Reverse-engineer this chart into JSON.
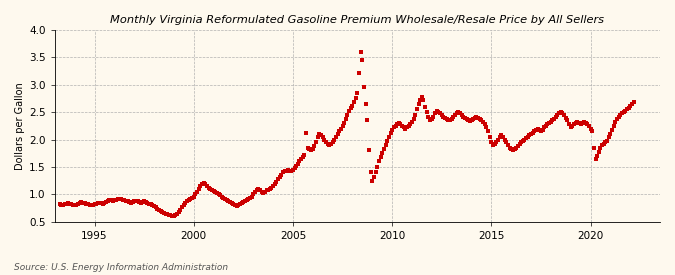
{
  "title": "Monthly Virginia Reformulated Gasoline Premium Wholesale/Resale Price by All Sellers",
  "ylabel": "Dollars per Gallon",
  "source": "Source: U.S. Energy Information Administration",
  "ylim": [
    0.5,
    4.0
  ],
  "yticks": [
    0.5,
    1.0,
    1.5,
    2.0,
    2.5,
    3.0,
    3.5,
    4.0
  ],
  "xlim_start": 1993.0,
  "xlim_end": 2023.5,
  "xticks": [
    1995,
    2000,
    2005,
    2010,
    2015,
    2020
  ],
  "background_color": "#fef9ee",
  "line_color": "#cc0000",
  "marker_color": "#cc0000",
  "data": [
    [
      1993.25,
      0.82
    ],
    [
      1993.33,
      0.8
    ],
    [
      1993.42,
      0.81
    ],
    [
      1993.5,
      0.82
    ],
    [
      1993.58,
      0.83
    ],
    [
      1993.67,
      0.84
    ],
    [
      1993.75,
      0.83
    ],
    [
      1993.83,
      0.82
    ],
    [
      1993.92,
      0.81
    ],
    [
      1994.0,
      0.8
    ],
    [
      1994.08,
      0.81
    ],
    [
      1994.17,
      0.82
    ],
    [
      1994.25,
      0.84
    ],
    [
      1994.33,
      0.86
    ],
    [
      1994.42,
      0.85
    ],
    [
      1994.5,
      0.84
    ],
    [
      1994.58,
      0.83
    ],
    [
      1994.67,
      0.82
    ],
    [
      1994.75,
      0.81
    ],
    [
      1994.83,
      0.8
    ],
    [
      1994.92,
      0.81
    ],
    [
      1995.0,
      0.82
    ],
    [
      1995.08,
      0.83
    ],
    [
      1995.17,
      0.84
    ],
    [
      1995.25,
      0.85
    ],
    [
      1995.33,
      0.84
    ],
    [
      1995.42,
      0.83
    ],
    [
      1995.5,
      0.84
    ],
    [
      1995.58,
      0.86
    ],
    [
      1995.67,
      0.88
    ],
    [
      1995.75,
      0.9
    ],
    [
      1995.83,
      0.89
    ],
    [
      1995.92,
      0.88
    ],
    [
      1996.0,
      0.89
    ],
    [
      1996.08,
      0.9
    ],
    [
      1996.17,
      0.91
    ],
    [
      1996.25,
      0.92
    ],
    [
      1996.33,
      0.91
    ],
    [
      1996.42,
      0.9
    ],
    [
      1996.5,
      0.89
    ],
    [
      1996.58,
      0.88
    ],
    [
      1996.67,
      0.87
    ],
    [
      1996.75,
      0.86
    ],
    [
      1996.83,
      0.85
    ],
    [
      1996.92,
      0.86
    ],
    [
      1997.0,
      0.87
    ],
    [
      1997.08,
      0.88
    ],
    [
      1997.17,
      0.87
    ],
    [
      1997.25,
      0.86
    ],
    [
      1997.33,
      0.85
    ],
    [
      1997.42,
      0.86
    ],
    [
      1997.5,
      0.87
    ],
    [
      1997.58,
      0.86
    ],
    [
      1997.67,
      0.84
    ],
    [
      1997.75,
      0.83
    ],
    [
      1997.83,
      0.82
    ],
    [
      1997.92,
      0.8
    ],
    [
      1998.0,
      0.78
    ],
    [
      1998.08,
      0.76
    ],
    [
      1998.17,
      0.74
    ],
    [
      1998.25,
      0.72
    ],
    [
      1998.33,
      0.7
    ],
    [
      1998.42,
      0.68
    ],
    [
      1998.5,
      0.66
    ],
    [
      1998.58,
      0.65
    ],
    [
      1998.67,
      0.64
    ],
    [
      1998.75,
      0.63
    ],
    [
      1998.83,
      0.62
    ],
    [
      1998.92,
      0.61
    ],
    [
      1999.0,
      0.6
    ],
    [
      1999.08,
      0.62
    ],
    [
      1999.17,
      0.65
    ],
    [
      1999.25,
      0.68
    ],
    [
      1999.33,
      0.72
    ],
    [
      1999.42,
      0.76
    ],
    [
      1999.5,
      0.8
    ],
    [
      1999.58,
      0.84
    ],
    [
      1999.67,
      0.87
    ],
    [
      1999.75,
      0.89
    ],
    [
      1999.83,
      0.91
    ],
    [
      1999.92,
      0.93
    ],
    [
      2000.0,
      0.95
    ],
    [
      2000.08,
      1.0
    ],
    [
      2000.17,
      1.05
    ],
    [
      2000.25,
      1.1
    ],
    [
      2000.33,
      1.15
    ],
    [
      2000.42,
      1.18
    ],
    [
      2000.5,
      1.2
    ],
    [
      2000.58,
      1.18
    ],
    [
      2000.67,
      1.15
    ],
    [
      2000.75,
      1.12
    ],
    [
      2000.83,
      1.1
    ],
    [
      2000.92,
      1.08
    ],
    [
      2001.0,
      1.06
    ],
    [
      2001.08,
      1.04
    ],
    [
      2001.17,
      1.02
    ],
    [
      2001.25,
      1.0
    ],
    [
      2001.33,
      0.98
    ],
    [
      2001.42,
      0.96
    ],
    [
      2001.5,
      0.94
    ],
    [
      2001.58,
      0.92
    ],
    [
      2001.67,
      0.9
    ],
    [
      2001.75,
      0.88
    ],
    [
      2001.83,
      0.86
    ],
    [
      2001.92,
      0.84
    ],
    [
      2002.0,
      0.82
    ],
    [
      2002.08,
      0.8
    ],
    [
      2002.17,
      0.79
    ],
    [
      2002.25,
      0.8
    ],
    [
      2002.33,
      0.82
    ],
    [
      2002.42,
      0.84
    ],
    [
      2002.5,
      0.86
    ],
    [
      2002.58,
      0.88
    ],
    [
      2002.67,
      0.9
    ],
    [
      2002.75,
      0.92
    ],
    [
      2002.83,
      0.94
    ],
    [
      2002.92,
      0.96
    ],
    [
      2003.0,
      1.0
    ],
    [
      2003.08,
      1.05
    ],
    [
      2003.17,
      1.08
    ],
    [
      2003.25,
      1.1
    ],
    [
      2003.33,
      1.08
    ],
    [
      2003.42,
      1.05
    ],
    [
      2003.5,
      1.03
    ],
    [
      2003.58,
      1.05
    ],
    [
      2003.67,
      1.07
    ],
    [
      2003.75,
      1.08
    ],
    [
      2003.83,
      1.1
    ],
    [
      2003.92,
      1.12
    ],
    [
      2004.0,
      1.15
    ],
    [
      2004.08,
      1.18
    ],
    [
      2004.17,
      1.22
    ],
    [
      2004.25,
      1.28
    ],
    [
      2004.33,
      1.32
    ],
    [
      2004.42,
      1.36
    ],
    [
      2004.5,
      1.4
    ],
    [
      2004.58,
      1.42
    ],
    [
      2004.67,
      1.43
    ],
    [
      2004.75,
      1.44
    ],
    [
      2004.83,
      1.43
    ],
    [
      2004.92,
      1.42
    ],
    [
      2005.0,
      1.45
    ],
    [
      2005.08,
      1.48
    ],
    [
      2005.17,
      1.52
    ],
    [
      2005.25,
      1.56
    ],
    [
      2005.33,
      1.6
    ],
    [
      2005.42,
      1.65
    ],
    [
      2005.5,
      1.68
    ],
    [
      2005.58,
      1.72
    ],
    [
      2005.67,
      2.12
    ],
    [
      2005.75,
      1.85
    ],
    [
      2005.83,
      1.82
    ],
    [
      2005.92,
      1.8
    ],
    [
      2006.0,
      1.82
    ],
    [
      2006.08,
      1.88
    ],
    [
      2006.17,
      1.95
    ],
    [
      2006.25,
      2.05
    ],
    [
      2006.33,
      2.1
    ],
    [
      2006.42,
      2.08
    ],
    [
      2006.5,
      2.05
    ],
    [
      2006.58,
      2.0
    ],
    [
      2006.67,
      1.95
    ],
    [
      2006.75,
      1.92
    ],
    [
      2006.83,
      1.9
    ],
    [
      2006.92,
      1.92
    ],
    [
      2007.0,
      1.95
    ],
    [
      2007.08,
      2.0
    ],
    [
      2007.17,
      2.05
    ],
    [
      2007.25,
      2.1
    ],
    [
      2007.33,
      2.15
    ],
    [
      2007.42,
      2.2
    ],
    [
      2007.5,
      2.25
    ],
    [
      2007.58,
      2.3
    ],
    [
      2007.67,
      2.38
    ],
    [
      2007.75,
      2.45
    ],
    [
      2007.83,
      2.52
    ],
    [
      2007.92,
      2.58
    ],
    [
      2008.0,
      2.62
    ],
    [
      2008.08,
      2.68
    ],
    [
      2008.17,
      2.75
    ],
    [
      2008.25,
      2.85
    ],
    [
      2008.33,
      3.22
    ],
    [
      2008.42,
      3.6
    ],
    [
      2008.5,
      3.45
    ],
    [
      2008.58,
      2.95
    ],
    [
      2008.67,
      2.65
    ],
    [
      2008.75,
      2.35
    ],
    [
      2008.83,
      1.8
    ],
    [
      2008.92,
      1.4
    ],
    [
      2009.0,
      1.25
    ],
    [
      2009.08,
      1.32
    ],
    [
      2009.17,
      1.4
    ],
    [
      2009.25,
      1.5
    ],
    [
      2009.33,
      1.6
    ],
    [
      2009.42,
      1.68
    ],
    [
      2009.5,
      1.75
    ],
    [
      2009.58,
      1.82
    ],
    [
      2009.67,
      1.9
    ],
    [
      2009.75,
      1.98
    ],
    [
      2009.83,
      2.05
    ],
    [
      2009.92,
      2.12
    ],
    [
      2010.0,
      2.18
    ],
    [
      2010.08,
      2.22
    ],
    [
      2010.17,
      2.25
    ],
    [
      2010.25,
      2.28
    ],
    [
      2010.33,
      2.3
    ],
    [
      2010.42,
      2.28
    ],
    [
      2010.5,
      2.25
    ],
    [
      2010.58,
      2.22
    ],
    [
      2010.67,
      2.2
    ],
    [
      2010.75,
      2.22
    ],
    [
      2010.83,
      2.25
    ],
    [
      2010.92,
      2.28
    ],
    [
      2011.0,
      2.32
    ],
    [
      2011.08,
      2.38
    ],
    [
      2011.17,
      2.45
    ],
    [
      2011.25,
      2.55
    ],
    [
      2011.33,
      2.65
    ],
    [
      2011.42,
      2.72
    ],
    [
      2011.5,
      2.78
    ],
    [
      2011.58,
      2.72
    ],
    [
      2011.67,
      2.6
    ],
    [
      2011.75,
      2.5
    ],
    [
      2011.83,
      2.42
    ],
    [
      2011.92,
      2.35
    ],
    [
      2012.0,
      2.38
    ],
    [
      2012.08,
      2.42
    ],
    [
      2012.17,
      2.48
    ],
    [
      2012.25,
      2.52
    ],
    [
      2012.33,
      2.5
    ],
    [
      2012.42,
      2.48
    ],
    [
      2012.5,
      2.45
    ],
    [
      2012.58,
      2.42
    ],
    [
      2012.67,
      2.4
    ],
    [
      2012.75,
      2.38
    ],
    [
      2012.83,
      2.36
    ],
    [
      2012.92,
      2.35
    ],
    [
      2013.0,
      2.38
    ],
    [
      2013.08,
      2.42
    ],
    [
      2013.17,
      2.45
    ],
    [
      2013.25,
      2.48
    ],
    [
      2013.33,
      2.5
    ],
    [
      2013.42,
      2.48
    ],
    [
      2013.5,
      2.45
    ],
    [
      2013.58,
      2.42
    ],
    [
      2013.67,
      2.4
    ],
    [
      2013.75,
      2.38
    ],
    [
      2013.83,
      2.36
    ],
    [
      2013.92,
      2.34
    ],
    [
      2014.0,
      2.36
    ],
    [
      2014.08,
      2.38
    ],
    [
      2014.17,
      2.4
    ],
    [
      2014.25,
      2.42
    ],
    [
      2014.33,
      2.4
    ],
    [
      2014.42,
      2.38
    ],
    [
      2014.5,
      2.35
    ],
    [
      2014.58,
      2.32
    ],
    [
      2014.67,
      2.28
    ],
    [
      2014.75,
      2.22
    ],
    [
      2014.83,
      2.15
    ],
    [
      2014.92,
      2.05
    ],
    [
      2015.0,
      1.95
    ],
    [
      2015.08,
      1.9
    ],
    [
      2015.17,
      1.92
    ],
    [
      2015.25,
      1.95
    ],
    [
      2015.33,
      2.0
    ],
    [
      2015.42,
      2.05
    ],
    [
      2015.5,
      2.08
    ],
    [
      2015.58,
      2.05
    ],
    [
      2015.67,
      2.0
    ],
    [
      2015.75,
      1.95
    ],
    [
      2015.83,
      1.9
    ],
    [
      2015.92,
      1.85
    ],
    [
      2016.0,
      1.82
    ],
    [
      2016.08,
      1.8
    ],
    [
      2016.17,
      1.82
    ],
    [
      2016.25,
      1.85
    ],
    [
      2016.33,
      1.88
    ],
    [
      2016.42,
      1.92
    ],
    [
      2016.5,
      1.95
    ],
    [
      2016.58,
      1.98
    ],
    [
      2016.67,
      2.0
    ],
    [
      2016.75,
      2.02
    ],
    [
      2016.83,
      2.05
    ],
    [
      2016.92,
      2.08
    ],
    [
      2017.0,
      2.1
    ],
    [
      2017.08,
      2.12
    ],
    [
      2017.17,
      2.15
    ],
    [
      2017.25,
      2.18
    ],
    [
      2017.33,
      2.2
    ],
    [
      2017.42,
      2.18
    ],
    [
      2017.5,
      2.15
    ],
    [
      2017.58,
      2.18
    ],
    [
      2017.67,
      2.22
    ],
    [
      2017.75,
      2.25
    ],
    [
      2017.83,
      2.28
    ],
    [
      2017.92,
      2.3
    ],
    [
      2018.0,
      2.32
    ],
    [
      2018.08,
      2.35
    ],
    [
      2018.17,
      2.38
    ],
    [
      2018.25,
      2.42
    ],
    [
      2018.33,
      2.45
    ],
    [
      2018.42,
      2.48
    ],
    [
      2018.5,
      2.5
    ],
    [
      2018.58,
      2.48
    ],
    [
      2018.67,
      2.45
    ],
    [
      2018.75,
      2.4
    ],
    [
      2018.83,
      2.35
    ],
    [
      2018.92,
      2.28
    ],
    [
      2019.0,
      2.22
    ],
    [
      2019.08,
      2.25
    ],
    [
      2019.17,
      2.28
    ],
    [
      2019.25,
      2.3
    ],
    [
      2019.33,
      2.32
    ],
    [
      2019.42,
      2.3
    ],
    [
      2019.5,
      2.28
    ],
    [
      2019.58,
      2.3
    ],
    [
      2019.67,
      2.32
    ],
    [
      2019.75,
      2.3
    ],
    [
      2019.83,
      2.28
    ],
    [
      2019.92,
      2.25
    ],
    [
      2020.0,
      2.2
    ],
    [
      2020.08,
      2.15
    ],
    [
      2020.17,
      1.85
    ],
    [
      2020.25,
      1.65
    ],
    [
      2020.33,
      1.7
    ],
    [
      2020.42,
      1.78
    ],
    [
      2020.5,
      1.85
    ],
    [
      2020.58,
      1.9
    ],
    [
      2020.67,
      1.92
    ],
    [
      2020.75,
      1.95
    ],
    [
      2020.83,
      1.98
    ],
    [
      2020.92,
      2.05
    ],
    [
      2021.0,
      2.1
    ],
    [
      2021.08,
      2.18
    ],
    [
      2021.17,
      2.25
    ],
    [
      2021.25,
      2.32
    ],
    [
      2021.33,
      2.38
    ],
    [
      2021.42,
      2.42
    ],
    [
      2021.5,
      2.45
    ],
    [
      2021.58,
      2.48
    ],
    [
      2021.67,
      2.5
    ],
    [
      2021.75,
      2.52
    ],
    [
      2021.83,
      2.55
    ],
    [
      2021.92,
      2.58
    ],
    [
      2022.0,
      2.62
    ],
    [
      2022.08,
      2.65
    ],
    [
      2022.17,
      2.68
    ]
  ]
}
